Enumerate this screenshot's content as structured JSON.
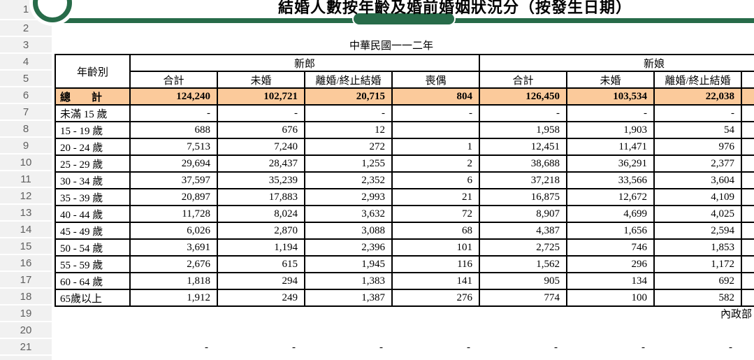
{
  "header": {
    "title": "結婚人數按年齡及婚前婚姻狀況分（按發生日期）",
    "year": "中華民國一一二年"
  },
  "row_numbers": [
    "1",
    "2",
    "3",
    "4",
    "5",
    "6",
    "7",
    "8",
    "9",
    "10",
    "11",
    "12",
    "13",
    "14",
    "15",
    "16",
    "17",
    "18",
    "19",
    "20",
    "21"
  ],
  "table": {
    "age_column_header": "年齡別",
    "groom_group_label": "新郎",
    "bride_group_label": "新娘",
    "sub_headers_groom": [
      "合計",
      "未婚",
      "離婚/終止結婚",
      "喪偶"
    ],
    "sub_headers_bride": [
      "合計",
      "未婚",
      "離婚/終止結婚"
    ],
    "total_row": {
      "label": "總　　計",
      "values": [
        "124,240",
        "102,721",
        "20,715",
        "804",
        "126,450",
        "103,534",
        "22,038"
      ]
    },
    "rows": [
      {
        "label": "未滿 15 歲",
        "values": [
          "-",
          "-",
          "-",
          "-",
          "-",
          "-",
          "-"
        ]
      },
      {
        "label": "15 - 19 歲",
        "values": [
          "688",
          "676",
          "12",
          "",
          "1,958",
          "1,903",
          "54"
        ]
      },
      {
        "label": "20 - 24 歲",
        "values": [
          "7,513",
          "7,240",
          "272",
          "1",
          "12,451",
          "11,471",
          "976"
        ]
      },
      {
        "label": "25 - 29 歲",
        "values": [
          "29,694",
          "28,437",
          "1,255",
          "2",
          "38,688",
          "36,291",
          "2,377"
        ]
      },
      {
        "label": "30 - 34 歲",
        "values": [
          "37,597",
          "35,239",
          "2,352",
          "6",
          "37,218",
          "33,566",
          "3,604"
        ]
      },
      {
        "label": "35 - 39 歲",
        "values": [
          "20,897",
          "17,883",
          "2,993",
          "21",
          "16,875",
          "12,672",
          "4,109"
        ]
      },
      {
        "label": "40 - 44 歲",
        "values": [
          "11,728",
          "8,024",
          "3,632",
          "72",
          "8,907",
          "4,699",
          "4,025"
        ]
      },
      {
        "label": "45 - 49 歲",
        "values": [
          "6,026",
          "2,870",
          "3,088",
          "68",
          "4,387",
          "1,656",
          "2,594"
        ]
      },
      {
        "label": "50 - 54 歲",
        "values": [
          "3,691",
          "1,194",
          "2,396",
          "101",
          "2,725",
          "746",
          "1,853"
        ]
      },
      {
        "label": "55 - 59 歲",
        "values": [
          "2,676",
          "615",
          "1,945",
          "116",
          "1,562",
          "296",
          "1,172"
        ]
      },
      {
        "label": "60 - 64 歲",
        "values": [
          "1,818",
          "294",
          "1,383",
          "141",
          "905",
          "134",
          "692"
        ]
      },
      {
        "label": "65歲以上",
        "values": [
          "1,912",
          "249",
          "1,387",
          "276",
          "774",
          "100",
          "582"
        ]
      }
    ]
  },
  "footer": {
    "agency": "內政部",
    "placeholder_dashes": [
      "-",
      "-",
      "-",
      "-",
      "-",
      "-",
      "-"
    ]
  },
  "colors": {
    "brand_green": "#276b49",
    "total_row_bg": "#fbca9b",
    "gutter_gray": "#f1f1f1"
  }
}
